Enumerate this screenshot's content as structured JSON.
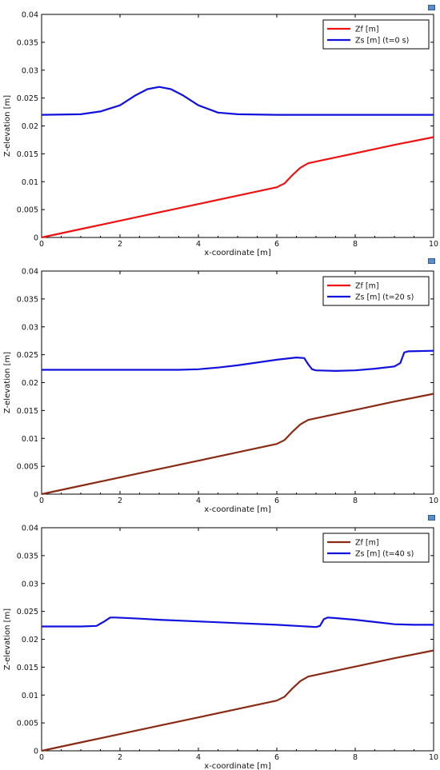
{
  "chart_data": [
    {
      "type": "line",
      "xlabel": "x-coordinate [m]",
      "ylabel": "Z-elevation [m]",
      "xlim": [
        0,
        10
      ],
      "ylim": [
        0,
        0.04
      ],
      "xticks": [
        "0",
        "2",
        "4",
        "6",
        "8",
        "10"
      ],
      "yticks": [
        "0",
        "0.005",
        "0.01",
        "0.015",
        "0.02",
        "0.025",
        "0.03",
        "0.035",
        "0.04"
      ],
      "grid": false,
      "legend_position": "top-right",
      "series": [
        {
          "name": "Zf [m]",
          "color": "#ee1111",
          "x": [
            0,
            1,
            2,
            3,
            4,
            5,
            6,
            6.2,
            6.4,
            6.6,
            6.8,
            7,
            8,
            9,
            10
          ],
          "y": [
            0,
            0.0015,
            0.003,
            0.0045,
            0.006,
            0.0075,
            0.009,
            0.0097,
            0.0112,
            0.0125,
            0.0133,
            0.0136,
            0.0151,
            0.0166,
            0.018
          ]
        },
        {
          "name": "Zs [m] (t=0 s)",
          "color": "#1111dd",
          "x": [
            0,
            1,
            1.5,
            2,
            2.4,
            2.7,
            3,
            3.3,
            3.6,
            4,
            4.5,
            5,
            6,
            7,
            8,
            9,
            10
          ],
          "y": [
            0.022,
            0.0221,
            0.0226,
            0.0237,
            0.0255,
            0.0266,
            0.027,
            0.0266,
            0.0255,
            0.0237,
            0.0224,
            0.0221,
            0.022,
            0.022,
            0.022,
            0.022,
            0.022
          ]
        }
      ]
    },
    {
      "type": "line",
      "xlabel": "x-coordinate [m]",
      "ylabel": "Z-elevation [m]",
      "xlim": [
        0,
        10
      ],
      "ylim": [
        0,
        0.04
      ],
      "xticks": [
        "0",
        "2",
        "4",
        "6",
        "8",
        "10"
      ],
      "yticks": [
        "0",
        "0.005",
        "0.01",
        "0.015",
        "0.02",
        "0.025",
        "0.03",
        "0.035",
        "0.04"
      ],
      "grid": false,
      "legend_position": "top-right",
      "series": [
        {
          "name": "Zf [m]",
          "color": "#8b2a14",
          "legend_color": "#ee1111",
          "x": [
            0,
            1,
            2,
            3,
            4,
            5,
            6,
            6.2,
            6.4,
            6.6,
            6.8,
            7,
            8,
            9,
            10
          ],
          "y": [
            0,
            0.0015,
            0.003,
            0.0045,
            0.006,
            0.0075,
            0.009,
            0.0097,
            0.0112,
            0.0125,
            0.0133,
            0.0136,
            0.0151,
            0.0166,
            0.018
          ]
        },
        {
          "name": "Zs [m] (t=20 s)",
          "color": "#1111dd",
          "x": [
            0,
            1,
            2,
            3,
            3.5,
            4,
            4.5,
            5,
            5.5,
            6,
            6.5,
            6.7,
            6.8,
            6.9,
            7,
            7.5,
            8,
            8.5,
            9,
            9.15,
            9.25,
            9.35,
            10
          ],
          "y": [
            0.0223,
            0.0223,
            0.0223,
            0.0223,
            0.0223,
            0.0224,
            0.0227,
            0.0231,
            0.0236,
            0.0241,
            0.0245,
            0.0244,
            0.0233,
            0.0224,
            0.0222,
            0.0221,
            0.0222,
            0.0225,
            0.0229,
            0.0235,
            0.0254,
            0.0256,
            0.0257
          ]
        }
      ]
    },
    {
      "type": "line",
      "xlabel": "x-coordinate [m]",
      "ylabel": "Z-elevation [m]",
      "xlim": [
        0,
        10
      ],
      "ylim": [
        0,
        0.04
      ],
      "xticks": [
        "0",
        "2",
        "4",
        "6",
        "8",
        "10"
      ],
      "yticks": [
        "0",
        "0.005",
        "0.01",
        "0.015",
        "0.02",
        "0.025",
        "0.03",
        "0.035",
        "0.04"
      ],
      "grid": false,
      "legend_position": "top-right",
      "series": [
        {
          "name": "Zf [m]",
          "color": "#8b2a14",
          "x": [
            0,
            1,
            2,
            3,
            4,
            5,
            6,
            6.2,
            6.4,
            6.6,
            6.8,
            7,
            8,
            9,
            10
          ],
          "y": [
            0,
            0.0015,
            0.003,
            0.0045,
            0.006,
            0.0075,
            0.009,
            0.0097,
            0.0112,
            0.0125,
            0.0133,
            0.0136,
            0.0151,
            0.0166,
            0.018
          ]
        },
        {
          "name": "Zs [m] (t=40 s)",
          "color": "#1111dd",
          "x": [
            0,
            0.5,
            1,
            1.4,
            1.6,
            1.75,
            1.9,
            2.5,
            3,
            4,
            5,
            6,
            7,
            7.1,
            7.2,
            7.3,
            7.5,
            8,
            8.5,
            9,
            9.5,
            10
          ],
          "y": [
            0.0223,
            0.0223,
            0.0223,
            0.0224,
            0.0232,
            0.0239,
            0.0239,
            0.0237,
            0.0235,
            0.0232,
            0.0229,
            0.0226,
            0.0222,
            0.0224,
            0.0236,
            0.0239,
            0.0238,
            0.0235,
            0.0231,
            0.0227,
            0.0226,
            0.0226
          ]
        }
      ]
    }
  ]
}
